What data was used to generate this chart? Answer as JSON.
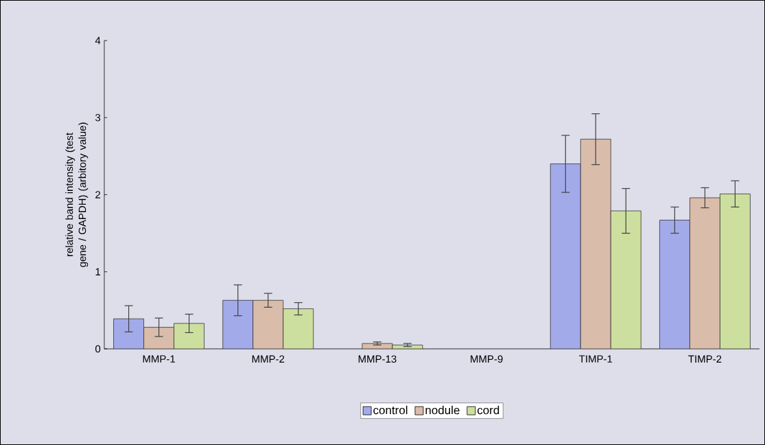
{
  "chart_data": {
    "type": "bar",
    "ylabel": "relative band intensity (test gene / GAPDH) (arbitory value)",
    "categories": [
      "MMP-1",
      "MMP-2",
      "MMP-13",
      "MMP-9",
      "TIMP-1",
      "TIMP-2"
    ],
    "series": [
      {
        "name": "control",
        "color": "#a3aaea",
        "values": [
          0.39,
          0.63,
          null,
          null,
          2.4,
          1.67
        ],
        "errors": [
          0.17,
          0.2,
          null,
          null,
          0.37,
          0.17
        ]
      },
      {
        "name": "nodule",
        "color": "#d9bcaa",
        "values": [
          0.28,
          0.63,
          0.07,
          null,
          2.72,
          1.96
        ],
        "errors": [
          0.12,
          0.09,
          0.02,
          null,
          0.33,
          0.13
        ]
      },
      {
        "name": "cord",
        "color": "#cddf9f",
        "values": [
          0.33,
          0.52,
          0.05,
          null,
          1.79,
          2.01
        ],
        "errors": [
          0.12,
          0.08,
          0.02,
          null,
          0.29,
          0.17
        ]
      }
    ],
    "ylim": [
      0,
      4
    ],
    "yticks": [
      0,
      1,
      2,
      3,
      4
    ],
    "grid": false,
    "legend": "bottom"
  }
}
